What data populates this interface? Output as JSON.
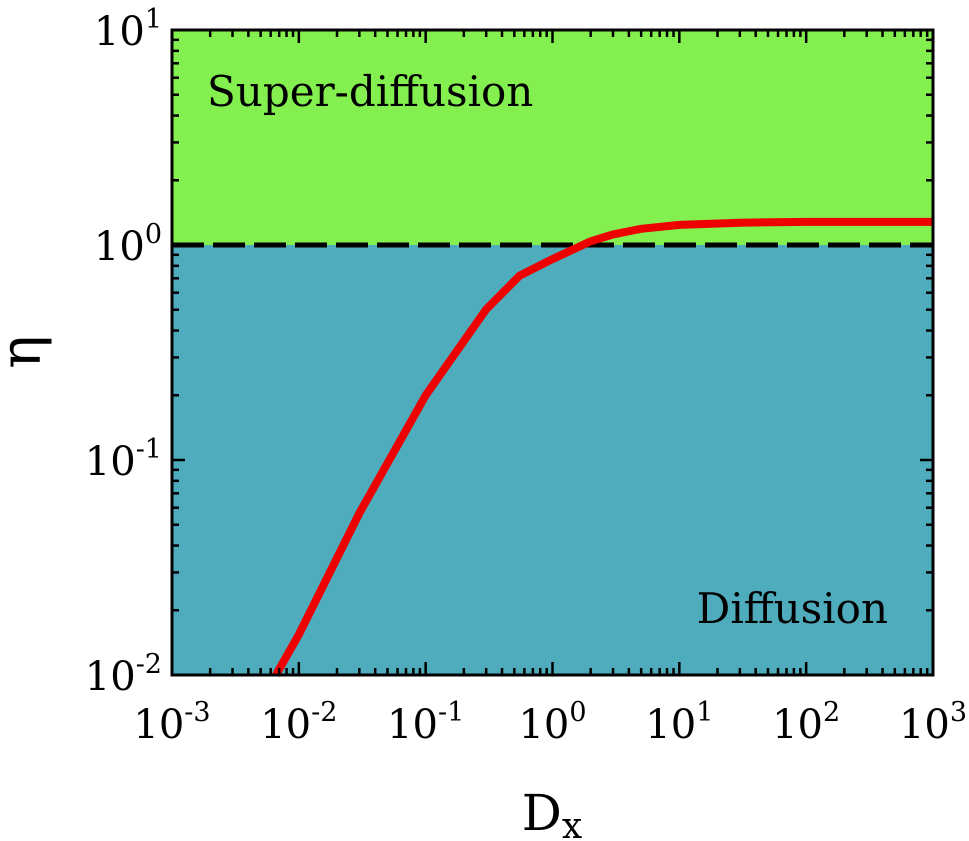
{
  "chart_data": {
    "type": "line",
    "xscale": "log",
    "yscale": "log",
    "xlim": [
      0.001,
      1000
    ],
    "ylim": [
      0.01,
      10
    ],
    "xlabel": {
      "main": "D",
      "sub": "x"
    },
    "ylabel": "η",
    "x_ticks": [
      {
        "value": 0.001,
        "base": "10",
        "exp": "-3"
      },
      {
        "value": 0.01,
        "base": "10",
        "exp": "-2"
      },
      {
        "value": 0.1,
        "base": "10",
        "exp": "-1"
      },
      {
        "value": 1,
        "base": "10",
        "exp": "0"
      },
      {
        "value": 10,
        "base": "10",
        "exp": "1"
      },
      {
        "value": 100,
        "base": "10",
        "exp": "2"
      },
      {
        "value": 1000,
        "base": "10",
        "exp": "3"
      }
    ],
    "y_ticks": [
      {
        "value": 0.01,
        "base": "10",
        "exp": "-2"
      },
      {
        "value": 0.1,
        "base": "10",
        "exp": "-1"
      },
      {
        "value": 1,
        "base": "10",
        "exp": "0"
      },
      {
        "value": 10,
        "base": "10",
        "exp": "1"
      }
    ],
    "regions": [
      {
        "label": "Super-diffusion",
        "y_from": 1,
        "y_to": 10,
        "color": "#84f04f"
      },
      {
        "label": "Diffusion",
        "y_from": 0.01,
        "y_to": 1,
        "color": "#4facbd"
      }
    ],
    "reference_line": {
      "y": 1,
      "style": "dashed",
      "color": "#000000"
    },
    "series": [
      {
        "color": "#ee0000",
        "points": [
          [
            0.0066,
            0.01
          ],
          [
            0.01,
            0.0154
          ],
          [
            0.03,
            0.0565
          ],
          [
            0.1,
            0.2
          ],
          [
            0.3,
            0.502
          ],
          [
            0.55,
            0.72
          ],
          [
            1,
            0.86
          ],
          [
            2,
            1.04
          ],
          [
            3,
            1.12
          ],
          [
            5,
            1.19
          ],
          [
            10,
            1.24
          ],
          [
            30,
            1.27
          ],
          [
            100,
            1.28
          ],
          [
            1000,
            1.28
          ]
        ]
      }
    ]
  }
}
